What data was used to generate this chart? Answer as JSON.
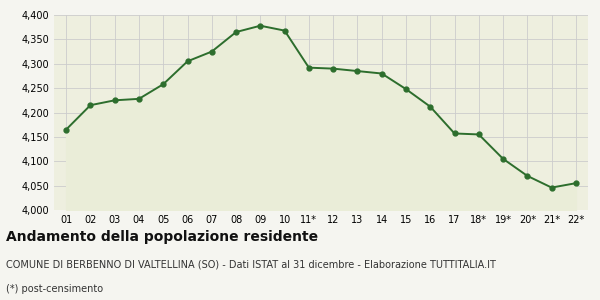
{
  "x_labels": [
    "01",
    "02",
    "03",
    "04",
    "05",
    "06",
    "07",
    "08",
    "09",
    "10",
    "11*",
    "12",
    "13",
    "14",
    "15",
    "16",
    "17",
    "18*",
    "19*",
    "20*",
    "21*",
    "22*"
  ],
  "y_values": [
    4165,
    4215,
    4225,
    4228,
    4258,
    4305,
    4325,
    4365,
    4378,
    4368,
    4292,
    4290,
    4285,
    4280,
    4248,
    4212,
    4157,
    4155,
    4105,
    4070,
    4046,
    4055
  ],
  "ylim_min": 4000,
  "ylim_max": 4400,
  "yticks": [
    4000,
    4050,
    4100,
    4150,
    4200,
    4250,
    4300,
    4350,
    4400
  ],
  "line_color": "#2d6e2d",
  "fill_color": "#eaedd8",
  "marker": "o",
  "marker_size": 3.5,
  "grid_color": "#cccccc",
  "bg_color": "#f5f5f0",
  "plot_bg": "#eeefdf",
  "title": "Andamento della popolazione residente",
  "subtitle": "COMUNE DI BERBENNO DI VALTELLINA (SO) - Dati ISTAT al 31 dicembre - Elaborazione TUTTITALIA.IT",
  "footnote": "(*) post-censimento",
  "title_fontsize": 10,
  "subtitle_fontsize": 7,
  "footnote_fontsize": 7
}
